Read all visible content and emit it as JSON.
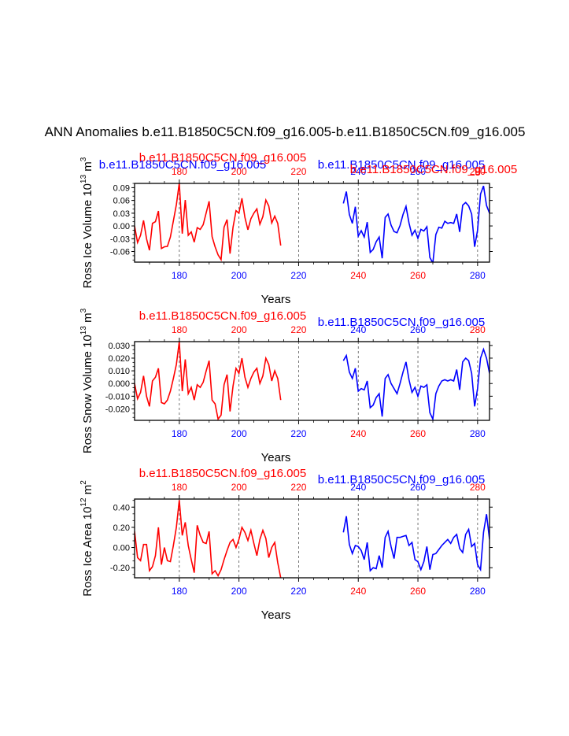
{
  "title": "ANN Anomalies b.e11.B1850C5CN.f09_g16.005-b.e11.B1850C5CN.f09_g16.005",
  "colors": {
    "series1": "#ff0000",
    "series2": "#0000ff",
    "axis": "#000000",
    "grid": "#555555"
  },
  "chart_data": [
    {
      "type": "line",
      "ylabel": "Ross Ice Volume 10",
      "ylabel_sup": "13",
      "ylabel_unit": " m",
      "ylabel_unit_sup": "3",
      "xlabel": "Years",
      "xlim": [
        165,
        284
      ],
      "ylim": [
        -0.085,
        0.1
      ],
      "yticks": [
        0.09,
        0.06,
        0.03,
        0.0,
        -0.03,
        -0.06
      ],
      "ytick_labels": [
        "0.09",
        "0.06",
        "0.03",
        "0.00",
        "-0.03",
        "-0.06"
      ],
      "xticks": [
        180,
        200,
        220,
        240,
        260,
        280
      ],
      "xtick_labels": [
        "180",
        "200",
        "220",
        "240",
        "260",
        "280"
      ],
      "vgrid": [
        180,
        200,
        220,
        240,
        260,
        280
      ],
      "top_axis_label": "b.e11.B1850C5CN.f09_g16.005",
      "bottom_axis_label": "b.e11.B1850C5CN.f09_g16.005",
      "top_axis_label_2": "b.e11.B1850C5CN.f09_g16.005",
      "bottom_axis_label_2": "b.e11.B1850C5CN.f09_g16.005",
      "series": [
        {
          "name": "b.e11.B1850C5CN.f09_g16.005",
          "color": "#ff0000",
          "x": [
            165,
            166,
            167,
            168,
            169,
            170,
            171,
            172,
            173,
            174,
            175,
            176,
            177,
            178,
            179,
            180,
            181,
            182,
            183,
            184,
            185,
            186,
            187,
            188,
            189,
            190,
            191,
            192,
            193,
            194,
            195,
            196,
            197,
            198,
            199,
            200,
            201,
            202,
            203,
            204,
            205,
            206,
            207,
            208,
            209,
            210,
            211,
            212,
            213,
            214
          ],
          "values": [
            0.0,
            -0.039,
            -0.022,
            0.013,
            -0.03,
            -0.057,
            0.006,
            0.01,
            0.035,
            -0.053,
            -0.049,
            -0.048,
            -0.026,
            0.012,
            0.05,
            0.101,
            -0.018,
            0.061,
            -0.022,
            -0.014,
            -0.038,
            -0.004,
            -0.008,
            0.003,
            0.031,
            0.058,
            -0.025,
            -0.049,
            -0.068,
            -0.079,
            -0.003,
            0.015,
            -0.065,
            -0.003,
            0.036,
            0.03,
            0.065,
            0.02,
            -0.009,
            0.017,
            0.03,
            0.04,
            0.004,
            0.022,
            0.061,
            0.047,
            0.007,
            0.023,
            0.006,
            -0.046
          ]
        },
        {
          "name": "b.e11.B1850C5CN.f09_g16.005",
          "color": "#0000ff",
          "x": [
            235,
            236,
            237,
            238,
            239,
            240,
            241,
            242,
            243,
            244,
            245,
            246,
            247,
            248,
            249,
            250,
            251,
            252,
            253,
            254,
            255,
            256,
            257,
            258,
            259,
            260,
            261,
            262,
            263,
            264,
            265,
            266,
            267,
            268,
            269,
            270,
            271,
            272,
            273,
            274,
            275,
            276,
            277,
            278,
            279,
            280,
            281,
            282,
            283,
            284
          ],
          "values": [
            0.053,
            0.081,
            0.027,
            0.006,
            0.045,
            -0.024,
            -0.011,
            -0.026,
            0.009,
            -0.062,
            -0.055,
            -0.037,
            -0.026,
            -0.076,
            0.02,
            0.028,
            0.002,
            -0.013,
            -0.016,
            0.001,
            0.027,
            0.046,
            0.007,
            -0.022,
            -0.01,
            -0.029,
            -0.008,
            -0.012,
            -0.002,
            -0.074,
            -0.087,
            -0.02,
            -0.003,
            -0.005,
            0.011,
            0.006,
            0.008,
            0.006,
            0.028,
            -0.014,
            0.049,
            0.055,
            0.047,
            0.028,
            -0.049,
            -0.01,
            0.075,
            0.094,
            0.048,
            0.03
          ]
        }
      ]
    },
    {
      "type": "line",
      "ylabel": "Ross Snow Volume 10",
      "ylabel_sup": "13",
      "ylabel_unit": " m",
      "ylabel_unit_sup": "3",
      "xlabel": "Years",
      "xlim": [
        165,
        284
      ],
      "ylim": [
        -0.029,
        0.033
      ],
      "yticks": [
        0.03,
        0.02,
        0.01,
        0.0,
        -0.01,
        -0.02
      ],
      "ytick_labels": [
        "0.030",
        "0.020",
        "0.010",
        "0.000",
        "-0.010",
        "-0.020"
      ],
      "xticks": [
        180,
        200,
        220,
        240,
        260,
        280
      ],
      "xtick_labels": [
        "180",
        "200",
        "220",
        "240",
        "260",
        "280"
      ],
      "vgrid": [
        180,
        200,
        220,
        240,
        260,
        280
      ],
      "top_axis_label": "b.e11.B1850C5CN.f09_g16.005",
      "bottom_axis_label": "b.e11.B1850C5CN.f09_g16.005",
      "series": [
        {
          "name": "b.e11.B1850C5CN.f09_g16.005",
          "color": "#ff0000",
          "x": [
            165,
            166,
            167,
            168,
            169,
            170,
            171,
            172,
            173,
            174,
            175,
            176,
            177,
            178,
            179,
            180,
            181,
            182,
            183,
            184,
            185,
            186,
            187,
            188,
            189,
            190,
            191,
            192,
            193,
            194,
            195,
            196,
            197,
            198,
            199,
            200,
            201,
            202,
            203,
            204,
            205,
            206,
            207,
            208,
            209,
            210,
            211,
            212,
            213,
            214
          ],
          "values": [
            0.0,
            -0.012,
            -0.007,
            0.006,
            -0.01,
            -0.018,
            0.002,
            0.005,
            0.012,
            -0.015,
            -0.016,
            -0.013,
            -0.006,
            0.004,
            0.015,
            0.033,
            -0.006,
            0.019,
            -0.008,
            -0.003,
            -0.013,
            -0.001,
            -0.003,
            0.001,
            0.01,
            0.018,
            -0.013,
            -0.016,
            -0.028,
            -0.025,
            -0.001,
            0.007,
            -0.022,
            -0.002,
            0.012,
            0.008,
            0.02,
            0.005,
            -0.003,
            0.004,
            0.009,
            0.012,
            0.0,
            0.006,
            0.02,
            0.015,
            0.002,
            0.01,
            0.004,
            -0.013
          ]
        },
        {
          "name": "b.e11.B1850C5CN.f09_g16.005",
          "color": "#0000ff",
          "x": [
            235,
            236,
            237,
            238,
            239,
            240,
            241,
            242,
            243,
            244,
            245,
            246,
            247,
            248,
            249,
            250,
            251,
            252,
            253,
            254,
            255,
            256,
            257,
            258,
            259,
            260,
            261,
            262,
            263,
            264,
            265,
            266,
            267,
            268,
            269,
            270,
            271,
            272,
            273,
            274,
            275,
            276,
            277,
            278,
            279,
            280,
            281,
            282,
            283,
            284
          ],
          "values": [
            0.018,
            0.022,
            0.009,
            0.004,
            0.012,
            -0.006,
            -0.004,
            -0.005,
            0.002,
            -0.019,
            -0.017,
            -0.011,
            -0.008,
            -0.026,
            0.004,
            0.007,
            0.0,
            -0.004,
            -0.008,
            0.0,
            0.009,
            0.017,
            0.003,
            -0.007,
            -0.003,
            -0.01,
            -0.002,
            -0.003,
            -0.001,
            -0.023,
            -0.028,
            -0.008,
            -0.002,
            0.002,
            0.003,
            0.002,
            0.003,
            0.002,
            0.011,
            -0.005,
            0.017,
            0.02,
            0.018,
            0.008,
            -0.018,
            -0.004,
            0.02,
            0.027,
            0.02,
            0.008
          ]
        }
      ]
    },
    {
      "type": "line",
      "ylabel": "Ross Ice Area 10",
      "ylabel_sup": "12",
      "ylabel_unit": " m",
      "ylabel_unit_sup": "2",
      "xlabel": "Years",
      "xlim": [
        165,
        284
      ],
      "ylim": [
        -0.3,
        0.48
      ],
      "yticks": [
        0.4,
        0.2,
        0.0,
        -0.2
      ],
      "ytick_labels": [
        "0.40",
        "0.20",
        "0.00",
        "-0.20"
      ],
      "xticks": [
        180,
        200,
        220,
        240,
        260,
        280
      ],
      "xtick_labels": [
        "180",
        "200",
        "220",
        "240",
        "260",
        "280"
      ],
      "vgrid": [
        180,
        200,
        220,
        240,
        260,
        280
      ],
      "top_axis_label": "b.e11.B1850C5CN.f09_g16.005",
      "bottom_axis_label": "b.e11.B1850C5CN.f09_g16.005",
      "series": [
        {
          "name": "b.e11.B1850C5CN.f09_g16.005",
          "color": "#ff0000",
          "x": [
            165,
            166,
            167,
            168,
            169,
            170,
            171,
            172,
            173,
            174,
            175,
            176,
            177,
            178,
            179,
            180,
            181,
            182,
            183,
            184,
            185,
            186,
            187,
            188,
            189,
            190,
            191,
            192,
            193,
            194,
            195,
            196,
            197,
            198,
            199,
            200,
            201,
            202,
            203,
            204,
            205,
            206,
            207,
            208,
            209,
            210,
            211,
            212,
            213,
            214
          ],
          "values": [
            0.16,
            -0.1,
            -0.13,
            0.03,
            0.03,
            -0.23,
            -0.19,
            -0.08,
            0.2,
            -0.17,
            0.0,
            -0.13,
            -0.14,
            0.02,
            0.2,
            0.47,
            0.12,
            0.25,
            0.02,
            -0.12,
            -0.25,
            0.22,
            0.12,
            0.05,
            0.04,
            0.16,
            -0.26,
            -0.23,
            -0.28,
            -0.22,
            -0.12,
            -0.03,
            0.05,
            0.08,
            0.0,
            0.08,
            0.2,
            0.15,
            0.07,
            0.17,
            0.04,
            -0.08,
            0.08,
            0.17,
            0.09,
            -0.1,
            0.0,
            0.05,
            -0.15,
            -0.3
          ]
        },
        {
          "name": "b.e11.B1850C5CN.f09_g16.005",
          "color": "#0000ff",
          "x": [
            235,
            236,
            237,
            238,
            239,
            240,
            241,
            242,
            243,
            244,
            245,
            246,
            247,
            248,
            249,
            250,
            251,
            252,
            253,
            254,
            255,
            256,
            257,
            258,
            259,
            260,
            261,
            262,
            263,
            264,
            265,
            266,
            267,
            268,
            269,
            270,
            271,
            272,
            273,
            274,
            275,
            276,
            277,
            278,
            279,
            280,
            281,
            282,
            283,
            284
          ],
          "values": [
            0.15,
            0.31,
            0.03,
            -0.06,
            0.02,
            0.01,
            -0.03,
            -0.12,
            0.05,
            -0.23,
            -0.2,
            -0.21,
            -0.08,
            -0.2,
            0.1,
            0.16,
            0.01,
            -0.11,
            0.1,
            0.1,
            0.11,
            0.12,
            0.02,
            0.05,
            -0.12,
            -0.14,
            -0.22,
            -0.14,
            0.01,
            -0.22,
            -0.07,
            -0.06,
            -0.02,
            0.02,
            0.05,
            0.08,
            0.04,
            0.1,
            0.13,
            -0.01,
            -0.05,
            0.13,
            0.18,
            0.01,
            0.04,
            -0.17,
            -0.22,
            0.15,
            0.33,
            0.08
          ]
        }
      ]
    }
  ]
}
